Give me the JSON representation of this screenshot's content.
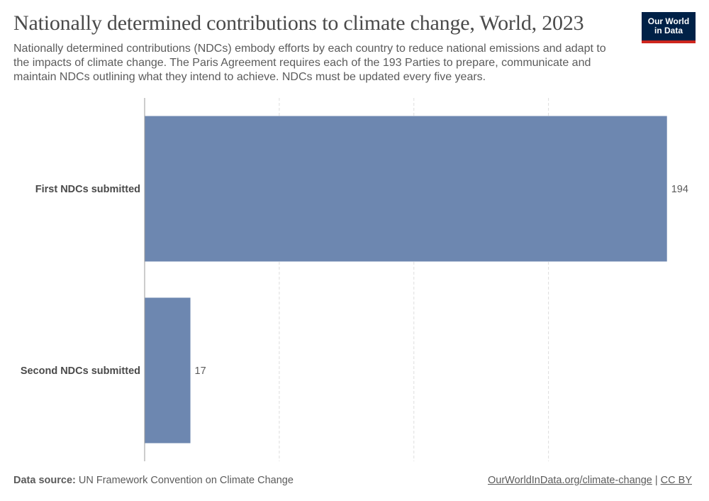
{
  "header": {
    "title": "Nationally determined contributions to climate change, World, 2023",
    "subtitle": "Nationally determined contributions (NDCs) embody efforts by each country to reduce national emissions and adapt to the impacts of climate change. The Paris Agreement requires each of the 193 Parties to prepare, communicate and maintain NDCs outlining what they intend to achieve. NDCs must be updated every five years."
  },
  "logo": {
    "line1": "Our World",
    "line2": "in Data"
  },
  "chart_data": {
    "type": "bar",
    "orientation": "horizontal",
    "categories": [
      "First NDCs submitted",
      "Second NDCs submitted"
    ],
    "values": [
      194,
      17
    ],
    "xlim": [
      0,
      200
    ],
    "grid": "vertical dashed",
    "colors": {
      "bar": "#6d87b0",
      "grid": "#dddddd",
      "axis": "#999999"
    }
  },
  "footer": {
    "source_label": "Data source:",
    "source_text": "UN Framework Convention on Climate Change",
    "link_text": "OurWorldInData.org/climate-change",
    "separator": "|",
    "license_text": "CC BY"
  }
}
